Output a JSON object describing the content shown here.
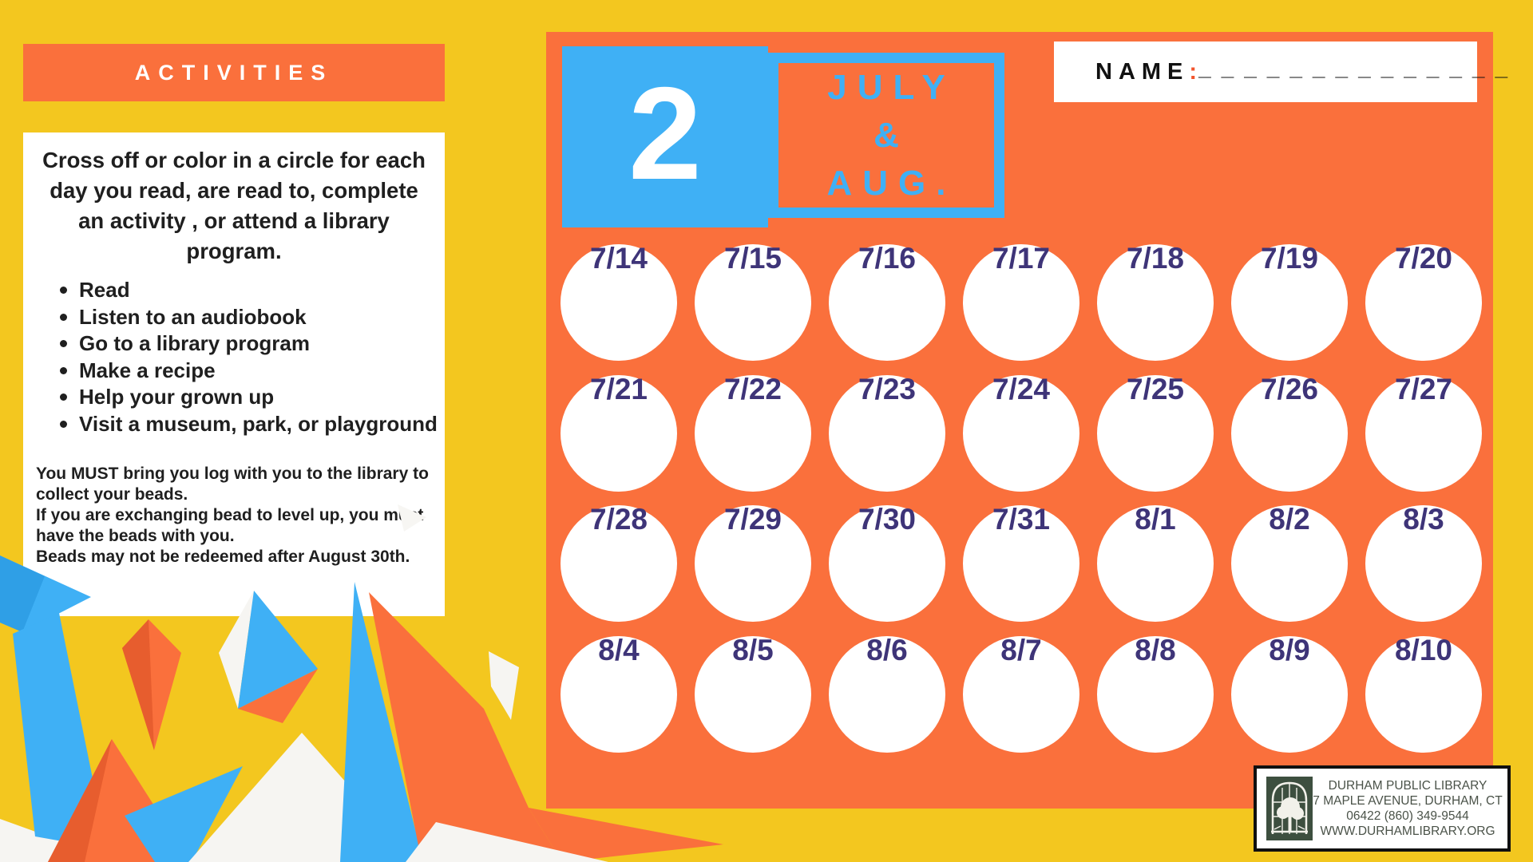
{
  "activities_panel": {
    "header": "ACTIVITIES",
    "intro_lines": [
      "Cross off or color in a circle for each",
      "day you read, are read to, complete",
      "an activity , or attend a library",
      "program."
    ],
    "bullets": [
      "Read",
      "Listen to an audiobook",
      "Go to a library program",
      "Make a recipe",
      "Help your grown up",
      "Visit a museum, park, or playground"
    ],
    "note_lines": [
      "You MUST bring you log with you to the library to",
      "collect your beads.",
      "If you are exchanging bead to level up, you must",
      "have the beads with you.",
      "Beads may not be redeemed after August 30th."
    ]
  },
  "calendar": {
    "level_number": "2",
    "month_label_lines": [
      "JULY",
      "&",
      "AUG."
    ],
    "name_label": "NAME",
    "name_colon": ":",
    "name_line": "______________",
    "dates": [
      "7/14",
      "7/15",
      "7/16",
      "7/17",
      "7/18",
      "7/19",
      "7/20",
      "7/21",
      "7/22",
      "7/23",
      "7/24",
      "7/25",
      "7/26",
      "7/27",
      "7/28",
      "7/29",
      "7/30",
      "7/31",
      "8/1",
      "8/2",
      "8/3",
      "8/4",
      "8/5",
      "8/6",
      "8/7",
      "8/8",
      "8/9",
      "8/10"
    ]
  },
  "footer": {
    "library": {
      "logo_icon": "library-arched-window-tree-logo",
      "lines": [
        "DURHAM PUBLIC LIBRARY",
        "7 MAPLE AVENUE, DURHAM, CT",
        "06422 (860) 349-9544",
        "WWW.DURHAMLIBRARY.ORG"
      ]
    }
  },
  "colors": {
    "background_yellow": "#F3C71F",
    "orange": "#FA703C",
    "orange_shade": "#E75D2E",
    "blue": "#3FB0F5",
    "blue_shade": "#2F9FE6",
    "date_navy": "#3E3478",
    "name_colon_red": "#F2542D",
    "shape_white": "#F6F5F2",
    "logo_green": "#3D4F3F",
    "library_text": "#4A5248"
  }
}
